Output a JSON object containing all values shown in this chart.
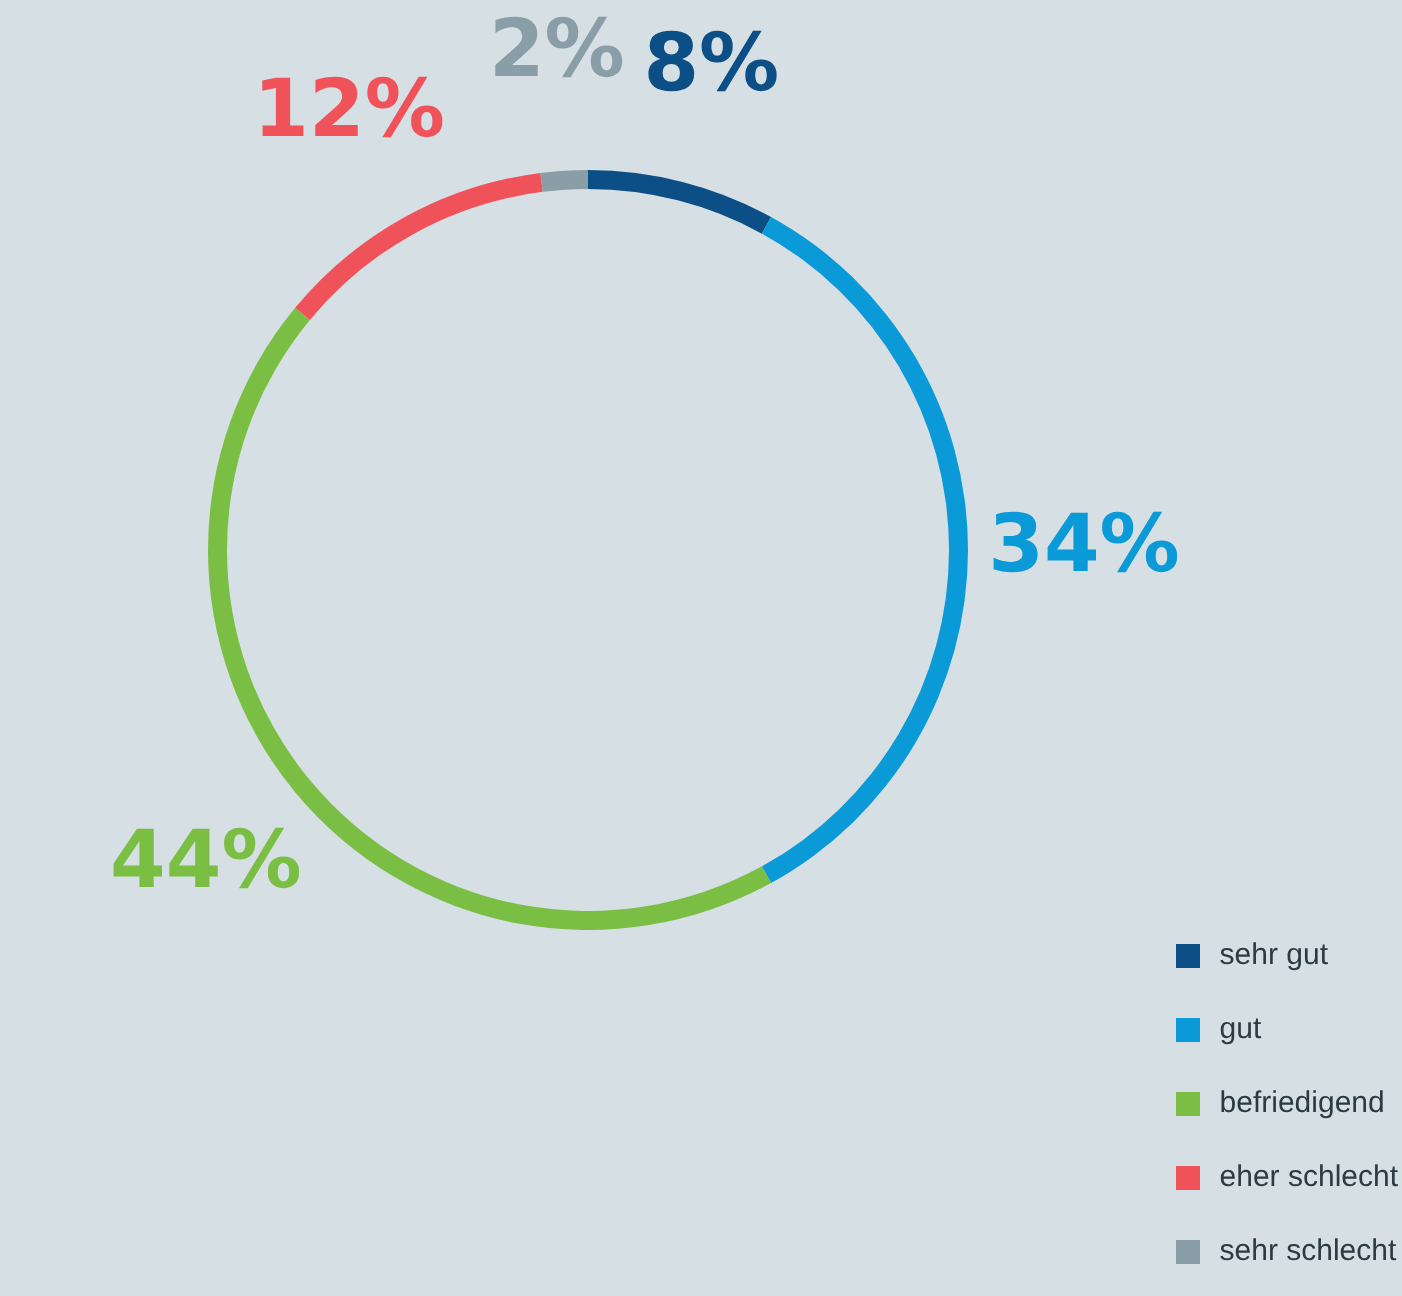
{
  "chart_data": {
    "type": "donut",
    "categories": [
      "sehr gut",
      "gut",
      "befriedigend",
      "eher schlecht",
      "sehr schlecht"
    ],
    "values": [
      8,
      34,
      44,
      12,
      2
    ],
    "colors": [
      "#0b4f86",
      "#0a9ad8",
      "#7abf43",
      "#f0525a",
      "#8a9ea8"
    ],
    "value_labels": [
      "8%",
      "34%",
      "44%",
      "12%",
      "2%"
    ],
    "legend": "bottom right"
  }
}
